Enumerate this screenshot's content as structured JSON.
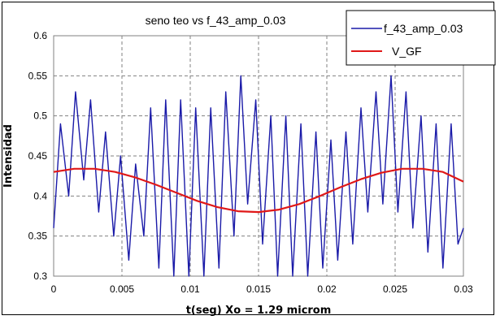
{
  "chart_data": {
    "type": "line",
    "title": "seno teo vs f_43_amp_0.03",
    "xlabel": "t(seg) Xo = 1.29 microm",
    "ylabel": "Intensidad",
    "xlim": [
      0,
      0.03
    ],
    "ylim": [
      0.3,
      0.6
    ],
    "x_ticks": [
      "0",
      "0.005",
      "0.01",
      "0.015",
      "0.02",
      "0.025",
      "0.03"
    ],
    "y_ticks": [
      "0.3",
      "0.35",
      "0.4",
      "0.45",
      "0.5",
      "0.55",
      "0.6"
    ],
    "grid": "dashed",
    "legend_position": "top-right",
    "series": [
      {
        "name": "f_43_amp_0.03",
        "color": "#1a1aa8",
        "x": [
          0,
          0.0005,
          0.0011,
          0.0016,
          0.0022,
          0.0027,
          0.0033,
          0.0038,
          0.0044,
          0.0049,
          0.0055,
          0.006,
          0.0066,
          0.0071,
          0.0077,
          0.0082,
          0.0088,
          0.0093,
          0.0099,
          0.0104,
          0.011,
          0.0115,
          0.0121,
          0.0126,
          0.0132,
          0.0137,
          0.0142,
          0.0148,
          0.0153,
          0.0159,
          0.0164,
          0.017,
          0.0175,
          0.0181,
          0.0186,
          0.0192,
          0.0197,
          0.0203,
          0.0208,
          0.0214,
          0.0219,
          0.0225,
          0.023,
          0.0236,
          0.0241,
          0.0247,
          0.0252,
          0.0258,
          0.0263,
          0.0269,
          0.0274,
          0.028,
          0.0285,
          0.0291,
          0.0296,
          0.03
        ],
        "values": [
          0.36,
          0.49,
          0.4,
          0.53,
          0.42,
          0.52,
          0.38,
          0.48,
          0.35,
          0.45,
          0.32,
          0.44,
          0.35,
          0.51,
          0.31,
          0.52,
          0.3,
          0.52,
          0.3,
          0.51,
          0.3,
          0.51,
          0.31,
          0.53,
          0.35,
          0.55,
          0.39,
          0.52,
          0.34,
          0.5,
          0.3,
          0.5,
          0.3,
          0.49,
          0.3,
          0.48,
          0.31,
          0.47,
          0.32,
          0.48,
          0.34,
          0.51,
          0.38,
          0.53,
          0.39,
          0.55,
          0.38,
          0.53,
          0.36,
          0.5,
          0.33,
          0.49,
          0.31,
          0.49,
          0.34,
          0.36
        ]
      },
      {
        "name": "V_GF",
        "color": "#e01818",
        "x": [
          0,
          0.0015,
          0.003,
          0.0045,
          0.006,
          0.0075,
          0.009,
          0.0105,
          0.012,
          0.0135,
          0.015,
          0.0165,
          0.018,
          0.0195,
          0.021,
          0.0225,
          0.024,
          0.0255,
          0.027,
          0.0285,
          0.03
        ],
        "values": [
          0.43,
          0.434,
          0.434,
          0.43,
          0.423,
          0.414,
          0.404,
          0.394,
          0.386,
          0.381,
          0.38,
          0.383,
          0.39,
          0.4,
          0.411,
          0.421,
          0.429,
          0.434,
          0.434,
          0.43,
          0.418
        ]
      }
    ]
  }
}
